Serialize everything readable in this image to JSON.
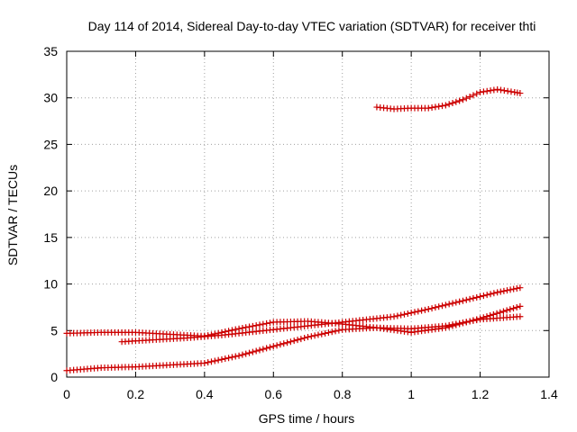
{
  "chart_data": {
    "type": "scatter",
    "title": "Day 114 of 2014, Sidereal Day-to-day VTEC variation (SDTVAR) for receiver thti",
    "xlabel": "GPS time / hours",
    "ylabel": "SDTVAR / TECUs",
    "xlim": [
      0,
      1.4
    ],
    "ylim": [
      0,
      35
    ],
    "xticks": [
      0,
      0.2,
      0.4,
      0.6,
      0.8,
      1,
      1.2,
      1.4
    ],
    "xtick_labels": [
      "0",
      "0.2",
      "0.4",
      "0.6",
      "0.8",
      "1",
      "1.2",
      "1.4"
    ],
    "yticks": [
      0,
      5,
      10,
      15,
      20,
      25,
      30,
      35
    ],
    "ytick_labels": [
      "0",
      "5",
      "10",
      "15",
      "20",
      "25",
      "30",
      "35"
    ],
    "grid": true,
    "marker": "+",
    "marker_color": "#cc0000",
    "series": [
      {
        "name": "series-1",
        "x": [
          0.0,
          0.1,
          0.2,
          0.3,
          0.4,
          0.5,
          0.6,
          0.7,
          0.8,
          0.9,
          1.0,
          1.1,
          1.2,
          1.316
        ],
        "y": [
          4.7,
          4.8,
          4.8,
          4.6,
          4.4,
          5.2,
          5.9,
          6.0,
          5.7,
          5.3,
          5.2,
          5.5,
          6.2,
          6.5
        ]
      },
      {
        "name": "series-2",
        "x": [
          0.0,
          0.1,
          0.2,
          0.3,
          0.4,
          0.5,
          0.6,
          0.7,
          0.8,
          0.9,
          1.0,
          1.1,
          1.2,
          1.316
        ],
        "y": [
          0.7,
          1.0,
          1.1,
          1.3,
          1.5,
          2.3,
          3.3,
          4.3,
          5.1,
          5.3,
          4.8,
          5.3,
          6.3,
          7.6
        ]
      },
      {
        "name": "series-3",
        "x": [
          0.16,
          0.25,
          0.35,
          0.45,
          0.55,
          0.65,
          0.75,
          0.85,
          0.95,
          1.05,
          1.15,
          1.25,
          1.316
        ],
        "y": [
          3.8,
          4.0,
          4.2,
          4.5,
          4.9,
          5.3,
          5.7,
          6.1,
          6.5,
          7.3,
          8.2,
          9.1,
          9.6
        ]
      },
      {
        "name": "series-4",
        "x": [
          0.9,
          0.95,
          1.0,
          1.05,
          1.1,
          1.15,
          1.2,
          1.25,
          1.3,
          1.316
        ],
        "y": [
          29.0,
          28.8,
          28.9,
          28.9,
          29.2,
          29.8,
          30.6,
          30.9,
          30.6,
          30.5
        ]
      }
    ]
  }
}
